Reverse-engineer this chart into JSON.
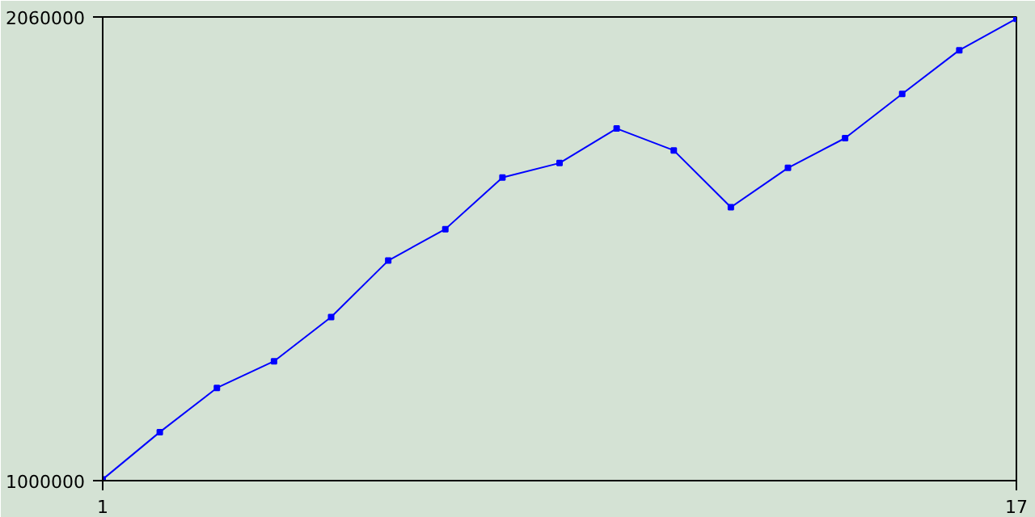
{
  "chart_data": {
    "type": "line",
    "x": [
      1,
      2,
      3,
      4,
      5,
      6,
      7,
      8,
      9,
      10,
      11,
      12,
      13,
      14,
      15,
      16,
      17
    ],
    "series": [
      {
        "color": "#0000ff",
        "values": [
          1003000,
          1111000,
          1212000,
          1273000,
          1374000,
          1503000,
          1575000,
          1693000,
          1726000,
          1805000,
          1755000,
          1625000,
          1715000,
          1783000,
          1884000,
          1984000,
          2056000
        ]
      }
    ],
    "xlim": [
      1,
      17
    ],
    "ylim": [
      1000000,
      2060000
    ],
    "xticks": [
      1,
      17
    ],
    "yticks": [
      1000000,
      2060000
    ],
    "marker": "square",
    "line_style": "solid"
  }
}
